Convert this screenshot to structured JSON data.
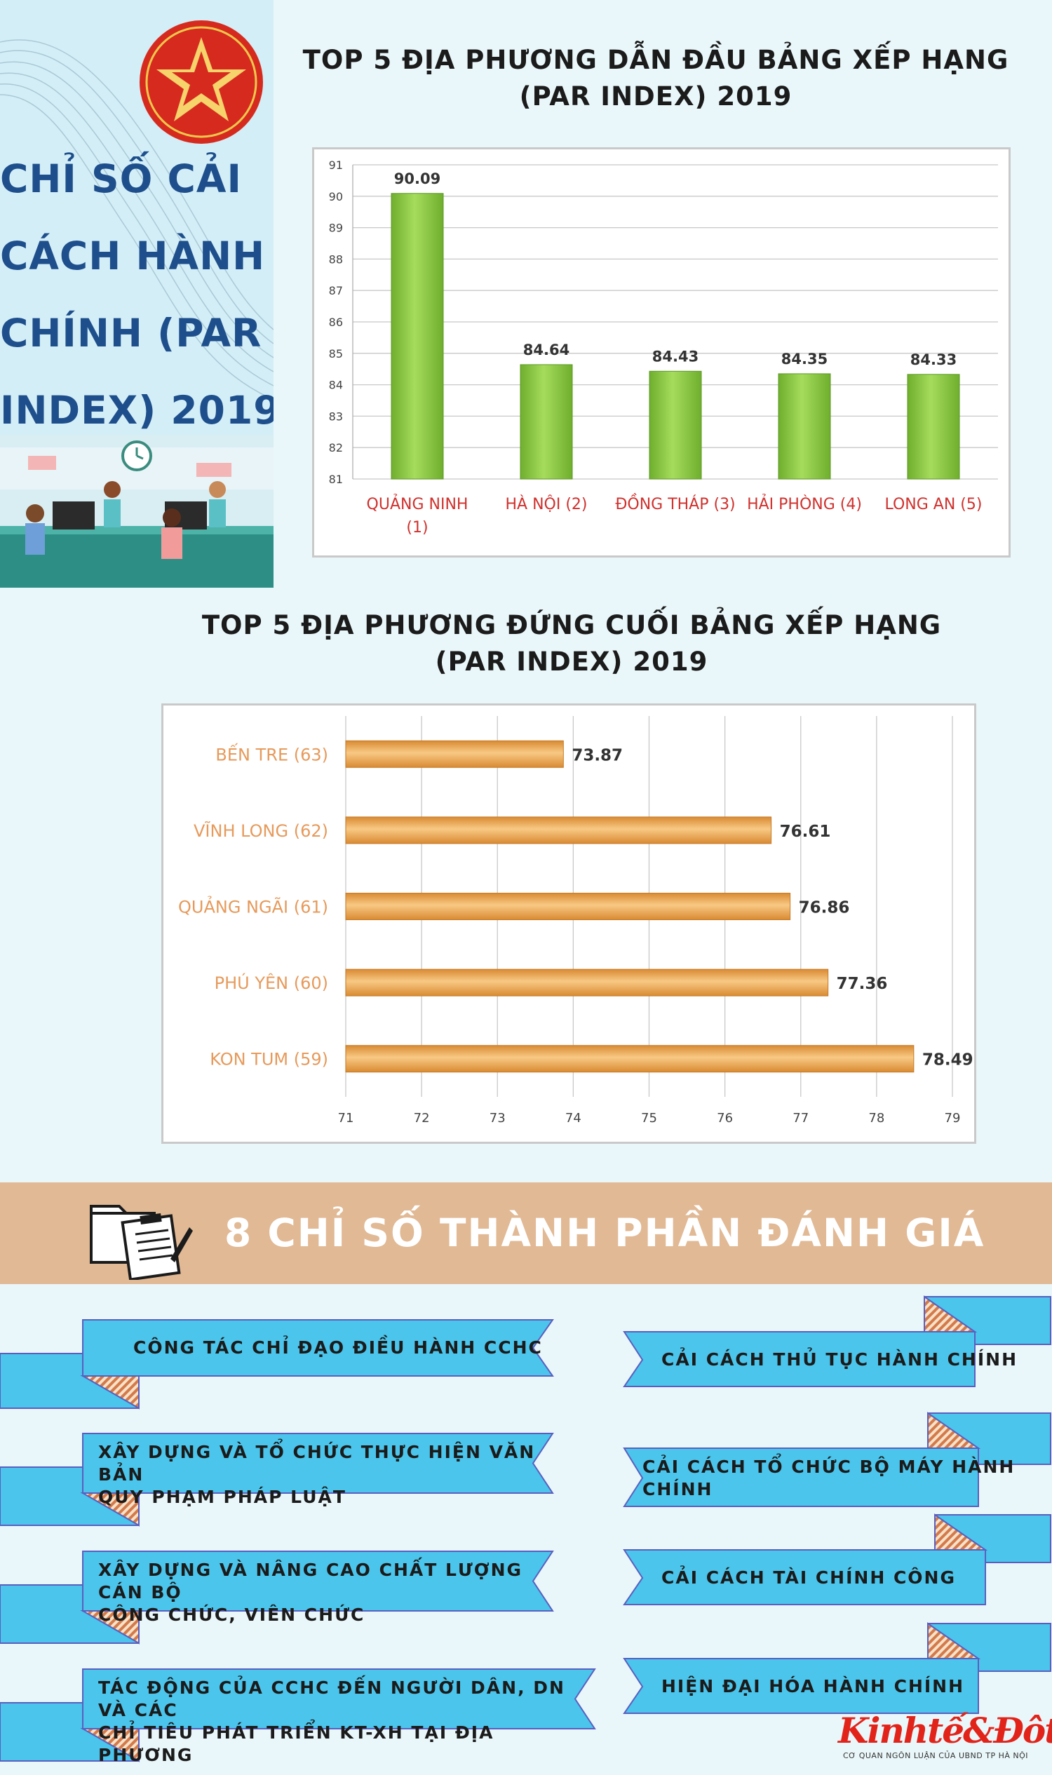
{
  "header": {
    "title_lines": [
      "CHỈ SỐ CẢI",
      "CÁCH HÀNH",
      "CHÍNH (PAR",
      "INDEX) 2019"
    ]
  },
  "chart_data": [
    {
      "type": "bar",
      "title_lines": [
        "TOP 5 ĐỊA PHƯƠNG DẪN ĐẦU BẢNG XẾP HẠNG",
        "(PAR INDEX) 2019"
      ],
      "categories": [
        [
          "QUẢNG NINH",
          "(1)"
        ],
        [
          "HÀ NỘI (2)"
        ],
        [
          "ĐỒNG THÁP (3)"
        ],
        [
          "HẢI PHÒNG (4)"
        ],
        [
          "LONG AN (5)"
        ]
      ],
      "values": [
        90.09,
        84.64,
        84.43,
        84.35,
        84.33
      ],
      "value_labels": [
        "90.09",
        "84.64",
        "84.43",
        "84.35",
        "84.33"
      ],
      "ylim": [
        81,
        91
      ],
      "yticks": [
        81,
        82,
        83,
        84,
        85,
        86,
        87,
        88,
        89,
        90,
        91
      ],
      "grid": true,
      "bar_color": "#8fcf45",
      "label_color": "#d0312d"
    },
    {
      "type": "bar",
      "orientation": "horizontal",
      "title_lines": [
        "TOP 5 ĐỊA PHƯƠNG ĐỨNG CUỐI BẢNG XẾP HẠNG",
        "(PAR INDEX) 2019"
      ],
      "categories": [
        "BẾN TRE (63)",
        "VĨNH LONG (62)",
        "QUẢNG NGÃI (61)",
        "PHÚ YÊN (60)",
        "KON TUM (59)"
      ],
      "values": [
        73.87,
        76.61,
        76.86,
        77.36,
        78.49
      ],
      "value_labels": [
        "73.87",
        "76.61",
        "76.86",
        "77.36",
        "78.49"
      ],
      "xlim": [
        71,
        79
      ],
      "xticks": [
        71,
        72,
        73,
        74,
        75,
        76,
        77,
        78,
        79
      ],
      "grid": true,
      "bar_color": "#f0a94e",
      "label_color": "#e69a5b"
    }
  ],
  "section": {
    "title": "8 CHỈ SỐ THÀNH PHẦN ĐÁNH GIÁ",
    "indicators_left": [
      [
        "CÔNG TÁC CHỈ ĐẠO ĐIỀU HÀNH CCHC"
      ],
      [
        "XÂY DỰNG VÀ TỔ CHỨC THỰC HIỆN VĂN BẢN",
        "QUY PHẠM PHÁP LUẬT"
      ],
      [
        "XÂY DỰNG VÀ NÂNG CAO CHẤT LƯỢNG CÁN BỘ",
        "CÔNG CHỨC, VIÊN CHỨC"
      ],
      [
        "TÁC ĐỘNG CỦA CCHC ĐẾN NGƯỜI DÂN, DN VÀ CÁC",
        "CHỈ TIÊU PHÁT TRIỂN KT-XH TẠI ĐỊA PHƯƠNG"
      ]
    ],
    "indicators_right": [
      [
        "CẢI CÁCH THỦ TỤC HÀNH CHÍNH"
      ],
      [
        "CẢI CÁCH TỔ CHỨC BỘ MÁY HÀNH",
        "CHÍNH"
      ],
      [
        "CẢI CÁCH TÀI CHÍNH CÔNG"
      ],
      [
        "HIỆN ĐẠI HÓA HÀNH CHÍNH"
      ]
    ],
    "ribbon_color": "#4bc5ec",
    "ribbon_border": "#5a5fbf"
  },
  "logo": {
    "name": "Kinhtế&Đôthị",
    "tagline": "CƠ QUAN NGÔN LUẬN CỦA UBND TP HÀ NỘI"
  }
}
